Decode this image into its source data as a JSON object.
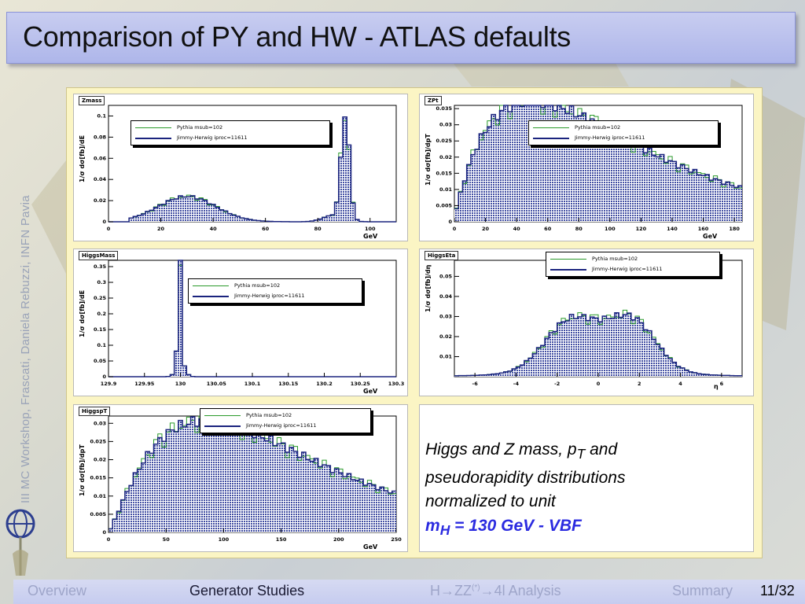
{
  "slide": {
    "title": "Comparison of PY and HW - ATLAS defaults",
    "side_text": "III MC Workshop, Frascati, Daniela Rebuzzi, INFN Pavia"
  },
  "caption": {
    "line1_a": "Higgs and Z mass, p",
    "line1_sub": "T",
    "line1_b": " and",
    "line2": "pseudorapidity distributions",
    "line3": "normalized to unit",
    "line4_a": "m",
    "line4_sub": "H",
    "line4_b": " = 130 GeV - VBF"
  },
  "footer": {
    "nav": [
      "Overview",
      "Generator Studies",
      "H→ZZ(*)→4l Analysis",
      "Summary"
    ],
    "current": "Generator Studies",
    "page": "11/32"
  },
  "colors": {
    "pythia": "#2a9a2a",
    "herwig": "#1a237e",
    "fill": "#3d4aa0",
    "accent": "#2b2be0"
  },
  "chart_data": [
    {
      "id": "zmass",
      "type": "histogram",
      "name": "Zmass",
      "ylabel": "1/σ dσ[fb]/dE",
      "xlabel": "GeV",
      "xlim": [
        0,
        110
      ],
      "ylim": [
        0,
        0.11
      ],
      "xticks": [
        "0",
        "20",
        "40",
        "60",
        "80",
        "100"
      ],
      "xtick_vals": [
        0,
        20,
        40,
        60,
        80,
        100
      ],
      "yticks": [
        "0",
        "0.02",
        "0.04",
        "0.06",
        "0.08",
        "0.1"
      ],
      "ytick_vals": [
        0,
        0.02,
        0.04,
        0.06,
        0.08,
        0.1
      ],
      "legend": [
        "Pythia msub=102",
        "Jimmy-Herwig iproc=11611"
      ]
    },
    {
      "id": "zpt",
      "type": "histogram",
      "name": "ZPt",
      "ylabel": "1/σ dσ[fb]/dpT",
      "xlabel": "GeV",
      "xlim": [
        0,
        185
      ],
      "ylim": [
        0,
        0.036
      ],
      "xticks": [
        "0",
        "20",
        "40",
        "60",
        "80",
        "100",
        "120",
        "140",
        "160",
        "180"
      ],
      "xtick_vals": [
        0,
        20,
        40,
        60,
        80,
        100,
        120,
        140,
        160,
        180
      ],
      "yticks": [
        "0",
        "0.005",
        "0.01",
        "0.015",
        "0.02",
        "0.025",
        "0.03",
        "0.035"
      ],
      "ytick_vals": [
        0,
        0.005,
        0.01,
        0.015,
        0.02,
        0.025,
        0.03,
        0.035
      ],
      "legend": [
        "Pythia msub=102",
        "Jimmy-Herwig iproc=11611"
      ]
    },
    {
      "id": "higgsmass",
      "type": "histogram",
      "name": "HiggsMass",
      "ylabel": "1/σ dσ[fb]/dE",
      "xlabel": "GeV",
      "xlim": [
        129.9,
        130.3
      ],
      "ylim": [
        0,
        0.37
      ],
      "xticks": [
        "129.9",
        "129.95",
        "130",
        "130.05",
        "130.1",
        "130.15",
        "130.2",
        "130.25",
        "130.3"
      ],
      "xtick_vals": [
        129.9,
        129.95,
        130,
        130.05,
        130.1,
        130.15,
        130.2,
        130.25,
        130.3
      ],
      "yticks": [
        "0",
        "0.05",
        "0.1",
        "0.15",
        "0.2",
        "0.25",
        "0.3",
        "0.35"
      ],
      "ytick_vals": [
        0,
        0.05,
        0.1,
        0.15,
        0.2,
        0.25,
        0.3,
        0.35
      ],
      "legend": [
        "Pythia msub=102",
        "Jimmy-Herwig iproc=11611"
      ]
    },
    {
      "id": "higgseta",
      "type": "histogram",
      "name": "HiggsEta",
      "ylabel": "1/σ dσ[fb]/dη",
      "xlabel": "η",
      "xlim": [
        -7,
        7
      ],
      "ylim": [
        0,
        0.058
      ],
      "xticks": [
        "-6",
        "-4",
        "-2",
        "0",
        "2",
        "4",
        "6"
      ],
      "xtick_vals": [
        -6,
        -4,
        -2,
        0,
        2,
        4,
        6
      ],
      "yticks": [
        "0.01",
        "0.02",
        "0.03",
        "0.04",
        "0.05"
      ],
      "ytick_vals": [
        0.01,
        0.02,
        0.03,
        0.04,
        0.05
      ],
      "legend": [
        "Pythia msub=102",
        "Jimmy-Herwig iproc=11611"
      ]
    },
    {
      "id": "higgspt",
      "type": "histogram",
      "name": "HiggspT",
      "ylabel": "1/σ dσ[fb]/dpT",
      "xlabel": "GeV",
      "xlim": [
        0,
        250
      ],
      "ylim": [
        0,
        0.032
      ],
      "xticks": [
        "0",
        "50",
        "100",
        "150",
        "200",
        "250"
      ],
      "xtick_vals": [
        0,
        50,
        100,
        150,
        200,
        250
      ],
      "yticks": [
        "0",
        "0.005",
        "0.01",
        "0.015",
        "0.02",
        "0.025",
        "0.03"
      ],
      "ytick_vals": [
        0,
        0.005,
        0.01,
        0.015,
        0.02,
        0.025,
        0.03
      ],
      "legend": [
        "Pythia msub=102",
        "Jimmy-Herwig iproc=11611"
      ]
    }
  ]
}
